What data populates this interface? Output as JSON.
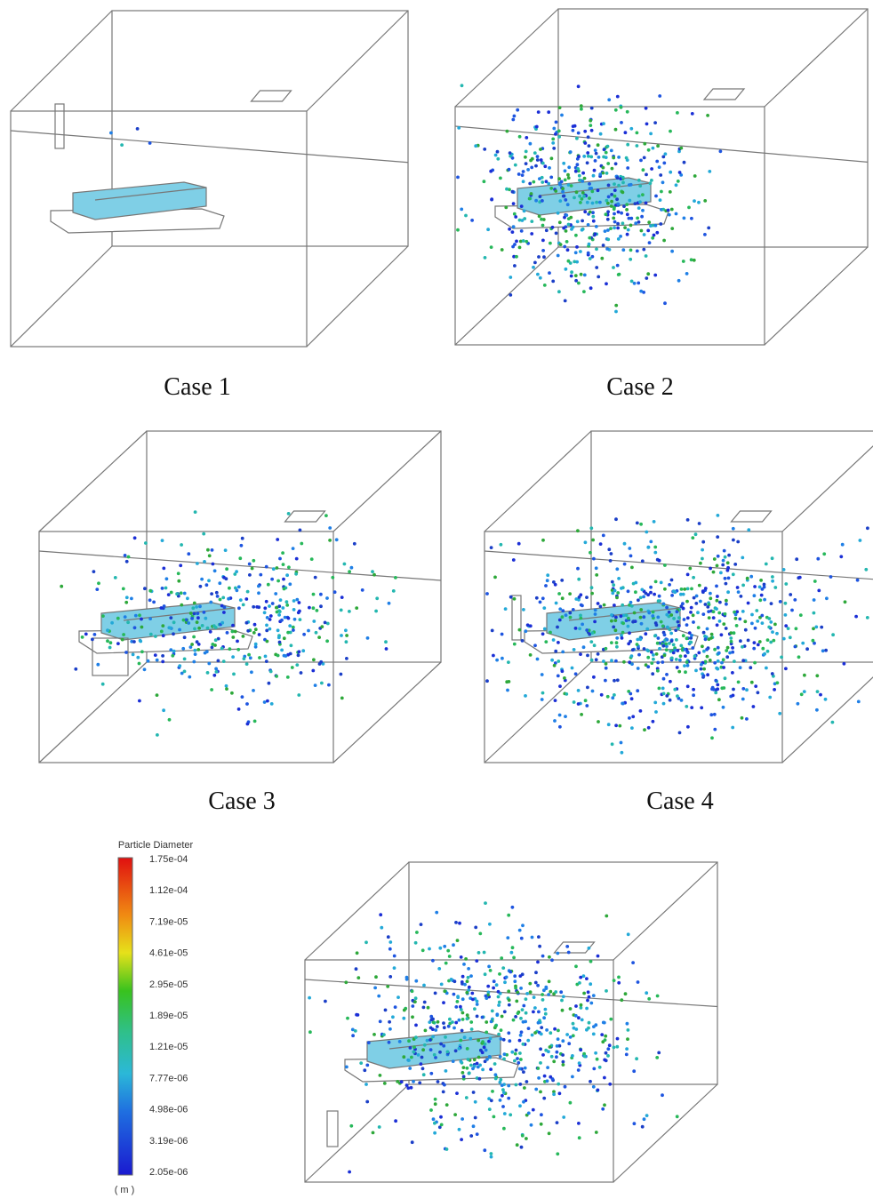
{
  "cases": [
    "Case 1",
    "Case 2",
    "Case 3",
    "Case 4"
  ],
  "legend": {
    "title": "Particle Diameter",
    "labels": [
      "1.75e-04",
      "1.12e-04",
      "7.19e-05",
      "4.61e-05",
      "2.95e-05",
      "1.89e-05",
      "1.21e-05",
      "7.77e-06",
      "4.98e-06",
      "3.19e-06",
      "2.05e-06"
    ],
    "unit": "( m )"
  }
}
